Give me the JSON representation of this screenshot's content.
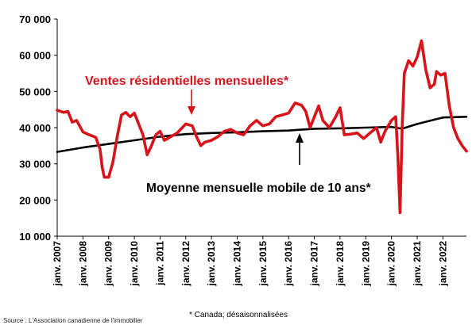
{
  "chart_data": {
    "type": "line",
    "ylim": [
      10000,
      70000
    ],
    "xlim": [
      "2007-01",
      "2022-12"
    ],
    "y_ticks": [
      "10 000",
      "20 000",
      "30 000",
      "40 000",
      "50 000",
      "60 000",
      "70 000"
    ],
    "x_ticks": [
      "janv. 2007",
      "janv. 2008",
      "janv. 2009",
      "janv. 2010",
      "janv. 2011",
      "janv. 2012",
      "janv. 2013",
      "janv. 2014",
      "janv. 2015",
      "janv. 2016",
      "janv. 2017",
      "janv. 2018",
      "janv. 2019",
      "janv. 2020",
      "janv. 2021",
      "janv. 2022"
    ],
    "grid": "none",
    "colors": {
      "sales": "#d7141b",
      "average": "#000000"
    },
    "series": [
      {
        "name": "Ventes résidentielles mensuelles*",
        "points": [
          [
            "2007-01",
            44800
          ],
          [
            "2007-04",
            44200
          ],
          [
            "2007-06",
            44500
          ],
          [
            "2007-08",
            41500
          ],
          [
            "2007-10",
            42000
          ],
          [
            "2008-01",
            38800
          ],
          [
            "2008-04",
            38000
          ],
          [
            "2008-07",
            37300
          ],
          [
            "2008-09",
            34000
          ],
          [
            "2008-10",
            29000
          ],
          [
            "2008-11",
            26300
          ],
          [
            "2009-01",
            26300
          ],
          [
            "2009-03",
            30500
          ],
          [
            "2009-05",
            37500
          ],
          [
            "2009-07",
            43500
          ],
          [
            "2009-09",
            44200
          ],
          [
            "2009-11",
            43000
          ],
          [
            "2010-01",
            44000
          ],
          [
            "2010-03",
            41000
          ],
          [
            "2010-05",
            38000
          ],
          [
            "2010-07",
            32500
          ],
          [
            "2010-09",
            35000
          ],
          [
            "2010-11",
            38000
          ],
          [
            "2011-01",
            39000
          ],
          [
            "2011-03",
            36500
          ],
          [
            "2011-06",
            37500
          ],
          [
            "2011-09",
            38500
          ],
          [
            "2012-01",
            41000
          ],
          [
            "2012-04",
            40500
          ],
          [
            "2012-06",
            37500
          ],
          [
            "2012-08",
            35000
          ],
          [
            "2012-10",
            36000
          ],
          [
            "2013-01",
            36500
          ],
          [
            "2013-04",
            37500
          ],
          [
            "2013-07",
            39000
          ],
          [
            "2013-10",
            39500
          ],
          [
            "2014-01",
            38500
          ],
          [
            "2014-04",
            38000
          ],
          [
            "2014-07",
            40500
          ],
          [
            "2014-10",
            42000
          ],
          [
            "2015-01",
            40500
          ],
          [
            "2015-04",
            41000
          ],
          [
            "2015-07",
            43000
          ],
          [
            "2015-10",
            43500
          ],
          [
            "2016-01",
            44000
          ],
          [
            "2016-04",
            46800
          ],
          [
            "2016-07",
            46200
          ],
          [
            "2016-09",
            44500
          ],
          [
            "2016-11",
            40000
          ],
          [
            "2017-01",
            43000
          ],
          [
            "2017-03",
            46000
          ],
          [
            "2017-05",
            42000
          ],
          [
            "2017-08",
            40000
          ],
          [
            "2017-11",
            43000
          ],
          [
            "2018-01",
            45500
          ],
          [
            "2018-03",
            38000
          ],
          [
            "2018-06",
            38200
          ],
          [
            "2018-09",
            38500
          ],
          [
            "2018-12",
            37000
          ],
          [
            "2019-03",
            38500
          ],
          [
            "2019-06",
            40000
          ],
          [
            "2019-08",
            36000
          ],
          [
            "2019-10",
            39000
          ],
          [
            "2020-01",
            42000
          ],
          [
            "2020-03",
            43000
          ],
          [
            "2020-04",
            32000
          ],
          [
            "2020-05",
            16500
          ],
          [
            "2020-06",
            40000
          ],
          [
            "2020-07",
            55000
          ],
          [
            "2020-09",
            58500
          ],
          [
            "2020-11",
            57000
          ],
          [
            "2021-01",
            59500
          ],
          [
            "2021-03",
            64000
          ],
          [
            "2021-05",
            56000
          ],
          [
            "2021-07",
            51000
          ],
          [
            "2021-09",
            52000
          ],
          [
            "2021-10",
            55500
          ],
          [
            "2021-12",
            54500
          ],
          [
            "2022-02",
            55000
          ],
          [
            "2022-04",
            46000
          ],
          [
            "2022-06",
            40000
          ],
          [
            "2022-08",
            37000
          ],
          [
            "2022-10",
            35000
          ],
          [
            "2022-12",
            33500
          ]
        ]
      },
      {
        "name": "Moyenne mensuelle mobile de 10 ans*",
        "points": [
          [
            "2007-01",
            33300
          ],
          [
            "2008-01",
            34500
          ],
          [
            "2009-01",
            35500
          ],
          [
            "2010-01",
            36500
          ],
          [
            "2011-01",
            37500
          ],
          [
            "2012-01",
            38200
          ],
          [
            "2013-01",
            38500
          ],
          [
            "2014-01",
            38700
          ],
          [
            "2015-01",
            39000
          ],
          [
            "2016-01",
            39200
          ],
          [
            "2017-01",
            39700
          ],
          [
            "2018-01",
            39800
          ],
          [
            "2019-01",
            40000
          ],
          [
            "2020-01",
            40200
          ],
          [
            "2020-06",
            39700
          ],
          [
            "2021-01",
            41000
          ],
          [
            "2022-01",
            42800
          ],
          [
            "2022-12",
            43000
          ]
        ]
      }
    ],
    "annotations": {
      "sales_label": "Ventes résidentielles mensuelles*",
      "average_label": "Moyenne mensuelle mobile de 10 ans*"
    },
    "footnote": "* Canada; désaisonnalisées",
    "source": "Source : L'Association canadienne de l'immobilier"
  }
}
